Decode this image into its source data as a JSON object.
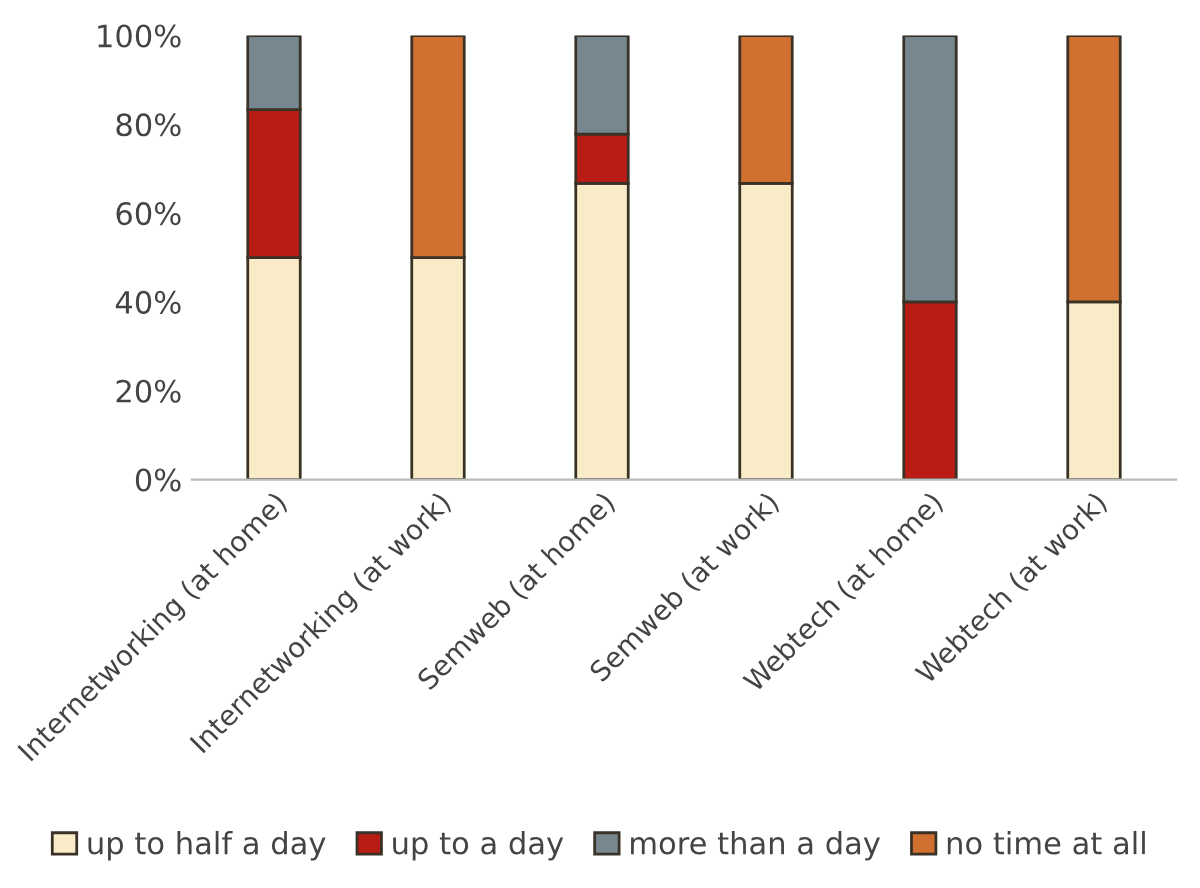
{
  "chart_data": {
    "type": "bar",
    "stacked": true,
    "categories": [
      "Internetworking (at home)",
      "Internetworking (at work)",
      "Semweb (at home)",
      "Semweb (at work)",
      "Webtech (at home)",
      "Webtech (at work)"
    ],
    "series": [
      {
        "name": "up to half a day",
        "color": "#faebc8",
        "values": [
          50,
          50,
          66.7,
          66.7,
          null,
          40
        ]
      },
      {
        "name": "up to a day",
        "color": "#b81c14",
        "values": [
          33.3,
          null,
          11.1,
          null,
          40,
          null
        ]
      },
      {
        "name": "more than a day",
        "color": "#76878f",
        "values": [
          16.7,
          null,
          22.2,
          null,
          60,
          null
        ]
      },
      {
        "name": "no time at all",
        "color": "#d07030",
        "values": [
          null,
          50,
          null,
          33.3,
          null,
          60
        ]
      }
    ],
    "ylim": [
      0,
      100
    ],
    "yticks": [
      {
        "value": 0,
        "label": "0%"
      },
      {
        "value": 20,
        "label": "20%"
      },
      {
        "value": 40,
        "label": "40%"
      },
      {
        "value": 60,
        "label": "60%"
      },
      {
        "value": 80,
        "label": "80%"
      },
      {
        "value": 100,
        "label": "100%"
      }
    ],
    "grid": false,
    "legend": "bottom"
  }
}
